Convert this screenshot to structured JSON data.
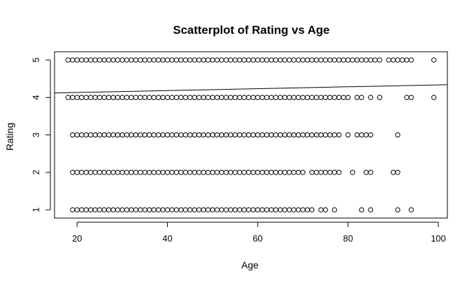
{
  "chart_data": {
    "type": "scatter",
    "title": "Scatterplot of Rating vs Age",
    "xlabel": "Age",
    "ylabel": "Rating",
    "xlim": [
      15,
      102
    ],
    "ylim": [
      0.78,
      5.22
    ],
    "x_ticks": [
      "20",
      "40",
      "60",
      "80",
      "100"
    ],
    "y_ticks": [
      "1",
      "2",
      "3",
      "4",
      "5"
    ],
    "grid": false,
    "legend": "none",
    "point_style": "open-circle",
    "groups": [
      {
        "rating": 5,
        "ages": [
          18,
          19,
          20,
          21,
          22,
          23,
          24,
          25,
          26,
          27,
          28,
          29,
          30,
          31,
          32,
          33,
          34,
          35,
          36,
          37,
          38,
          39,
          40,
          41,
          42,
          43,
          44,
          45,
          46,
          47,
          48,
          49,
          50,
          51,
          52,
          53,
          54,
          55,
          56,
          57,
          58,
          59,
          60,
          61,
          62,
          63,
          64,
          65,
          66,
          67,
          68,
          69,
          70,
          71,
          72,
          73,
          74,
          75,
          76,
          77,
          78,
          79,
          80,
          81,
          82,
          83,
          84,
          85,
          86,
          87,
          89,
          90,
          91,
          92,
          93,
          94,
          99
        ]
      },
      {
        "rating": 4,
        "ages": [
          18,
          19,
          20,
          21,
          22,
          23,
          24,
          25,
          26,
          27,
          28,
          29,
          30,
          31,
          32,
          33,
          34,
          35,
          36,
          37,
          38,
          39,
          40,
          41,
          42,
          43,
          44,
          45,
          46,
          47,
          48,
          49,
          50,
          51,
          52,
          53,
          54,
          55,
          56,
          57,
          58,
          59,
          60,
          61,
          62,
          63,
          64,
          65,
          66,
          67,
          68,
          69,
          70,
          71,
          72,
          73,
          74,
          75,
          76,
          77,
          78,
          79,
          80,
          82,
          83,
          85,
          87,
          93,
          94,
          99
        ]
      },
      {
        "rating": 3,
        "ages": [
          19,
          20,
          21,
          22,
          23,
          24,
          25,
          26,
          27,
          28,
          29,
          30,
          31,
          32,
          33,
          34,
          35,
          36,
          37,
          38,
          39,
          40,
          41,
          42,
          43,
          44,
          45,
          46,
          47,
          48,
          49,
          50,
          51,
          52,
          53,
          54,
          55,
          56,
          57,
          58,
          59,
          60,
          61,
          62,
          63,
          64,
          65,
          66,
          67,
          68,
          69,
          70,
          71,
          72,
          73,
          74,
          75,
          76,
          77,
          78,
          80,
          82,
          83,
          84,
          85,
          91
        ]
      },
      {
        "rating": 2,
        "ages": [
          19,
          20,
          21,
          22,
          23,
          24,
          25,
          26,
          27,
          28,
          29,
          30,
          31,
          32,
          33,
          34,
          35,
          36,
          37,
          38,
          39,
          40,
          41,
          42,
          43,
          44,
          45,
          46,
          47,
          48,
          49,
          50,
          51,
          52,
          53,
          54,
          55,
          56,
          57,
          58,
          59,
          60,
          61,
          62,
          63,
          64,
          65,
          66,
          67,
          68,
          69,
          70,
          72,
          73,
          74,
          75,
          76,
          77,
          78,
          81,
          84,
          85,
          90,
          91
        ]
      },
      {
        "rating": 1,
        "ages": [
          19,
          20,
          21,
          22,
          23,
          24,
          25,
          26,
          27,
          28,
          29,
          30,
          31,
          32,
          33,
          34,
          35,
          36,
          37,
          38,
          39,
          40,
          41,
          42,
          43,
          44,
          45,
          46,
          47,
          48,
          49,
          50,
          51,
          52,
          53,
          54,
          55,
          56,
          57,
          58,
          59,
          60,
          61,
          62,
          63,
          64,
          65,
          66,
          67,
          68,
          69,
          70,
          71,
          72,
          74,
          75,
          77,
          83,
          85,
          91,
          94
        ]
      }
    ],
    "regression_line": {
      "x": [
        15,
        102
      ],
      "y": [
        4.12,
        4.34
      ]
    }
  }
}
